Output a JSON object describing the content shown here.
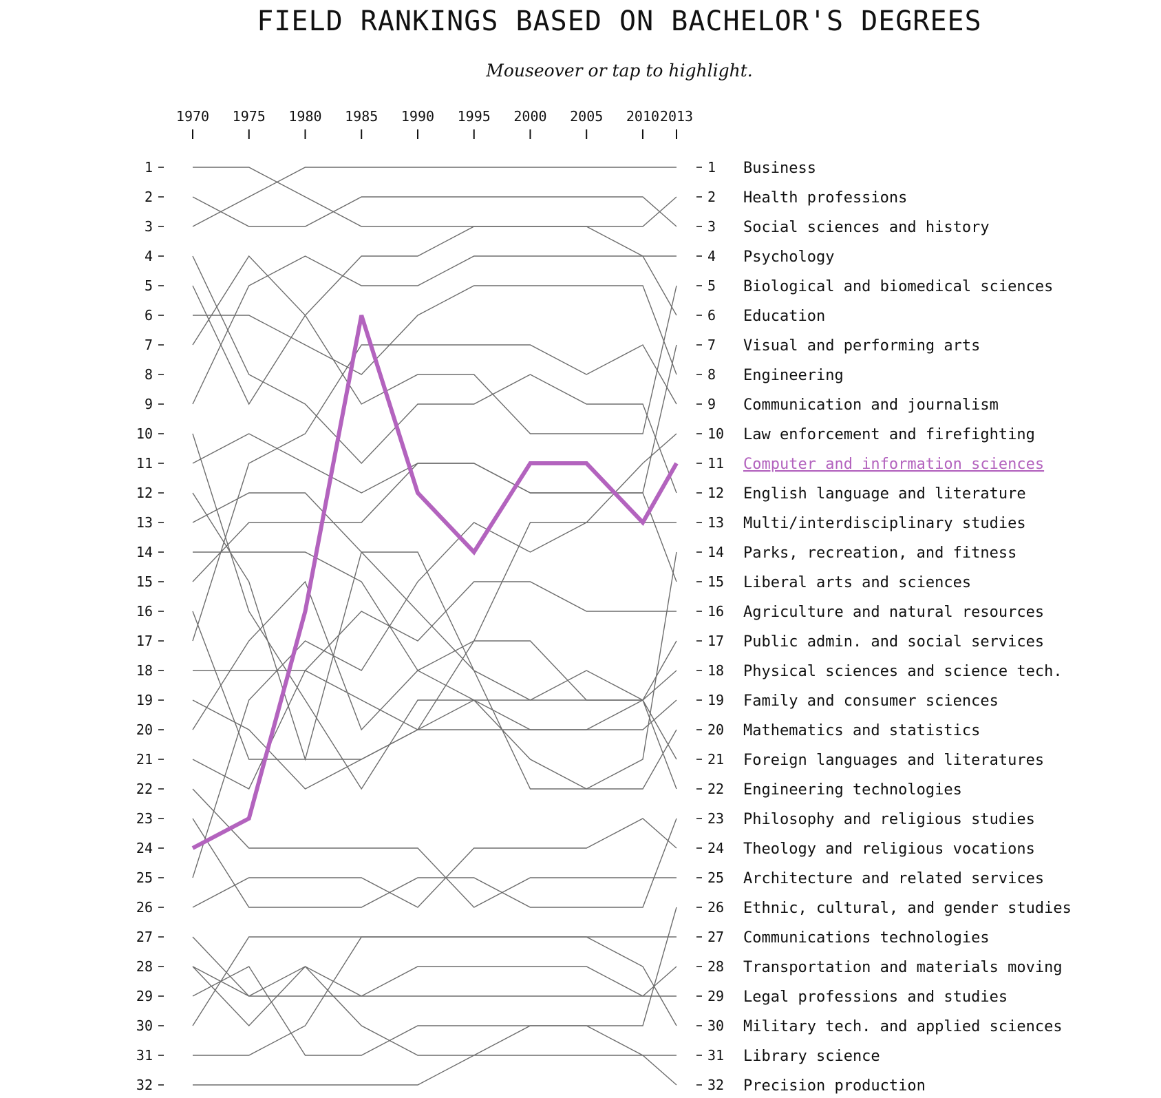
{
  "title": "FIELD RANKINGS BASED ON BACHELOR'S DEGREES",
  "subtitle": "Mouseover or tap to highlight.",
  "colors": {
    "line": "#6d6d6d",
    "highlight": "#b363be",
    "text": "#111111",
    "background": "#ffffff"
  },
  "chart_data": {
    "type": "line",
    "chart_kind": "bump chart (rank over time)",
    "title": "FIELD RANKINGS BASED ON BACHELOR'S DEGREES",
    "subtitle": "Mouseover or tap to highlight.",
    "x": [
      1970,
      1975,
      1980,
      1985,
      1990,
      1995,
      2000,
      2005,
      2010,
      2013
    ],
    "x_axis_position": "top",
    "y_axis_reversed": true,
    "ylim": [
      1,
      32
    ],
    "y_ticks": [
      1,
      2,
      3,
      4,
      5,
      6,
      7,
      8,
      9,
      10,
      11,
      12,
      13,
      14,
      15,
      16,
      17,
      18,
      19,
      20,
      21,
      22,
      23,
      24,
      25,
      26,
      27,
      28,
      29,
      30,
      31,
      32
    ],
    "highlighted_series": "Computer and information sciences",
    "series": [
      {
        "name": "Business",
        "values": [
          3,
          2,
          1,
          1,
          1,
          1,
          1,
          1,
          1,
          1
        ]
      },
      {
        "name": "Health professions",
        "values": [
          5,
          9,
          6,
          4,
          4,
          3,
          3,
          3,
          3,
          2
        ]
      },
      {
        "name": "Social sciences and history",
        "values": [
          2,
          3,
          3,
          2,
          2,
          2,
          2,
          2,
          2,
          3
        ]
      },
      {
        "name": "Psychology",
        "values": [
          9,
          5,
          4,
          5,
          5,
          4,
          4,
          4,
          4,
          4
        ]
      },
      {
        "name": "Biological and biomedical sciences",
        "values": [
          7,
          4,
          6,
          9,
          8,
          8,
          10,
          10,
          10,
          5
        ]
      },
      {
        "name": "Education",
        "values": [
          1,
          1,
          2,
          3,
          3,
          3,
          3,
          3,
          4,
          6
        ]
      },
      {
        "name": "Visual and performing arts",
        "values": [
          11,
          10,
          11,
          12,
          11,
          11,
          12,
          12,
          12,
          7
        ]
      },
      {
        "name": "Engineering",
        "values": [
          6,
          6,
          7,
          8,
          6,
          5,
          5,
          5,
          5,
          8
        ]
      },
      {
        "name": "Communication and journalism",
        "values": [
          17,
          11,
          10,
          7,
          7,
          7,
          7,
          8,
          7,
          9
        ]
      },
      {
        "name": "Law enforcement and firefighting",
        "values": [
          20,
          17,
          15,
          20,
          18,
          17,
          13,
          13,
          11,
          10
        ]
      },
      {
        "name": "Computer and information sciences",
        "values": [
          24,
          23,
          16,
          6,
          12,
          14,
          11,
          11,
          13,
          11
        ]
      },
      {
        "name": "English language and literature",
        "values": [
          4,
          8,
          9,
          11,
          9,
          9,
          8,
          9,
          9,
          12
        ]
      },
      {
        "name": "Multi/interdisciplinary studies",
        "values": [
          25,
          19,
          17,
          18,
          15,
          13,
          14,
          13,
          13,
          13
        ]
      },
      {
        "name": "Parks, recreation, and fitness",
        "values": [
          12,
          15,
          21,
          14,
          14,
          18,
          22,
          22,
          21,
          14
        ]
      },
      {
        "name": "Liberal arts and sciences",
        "values": [
          15,
          13,
          13,
          13,
          11,
          11,
          12,
          12,
          12,
          15
        ]
      },
      {
        "name": "Agriculture and natural resources",
        "values": [
          18,
          18,
          18,
          16,
          17,
          15,
          15,
          16,
          16,
          16
        ]
      },
      {
        "name": "Public admin. and social services",
        "values": [
          19,
          20,
          22,
          21,
          20,
          17,
          17,
          19,
          19,
          17
        ]
      },
      {
        "name": "Physical sciences and science tech.",
        "values": [
          14,
          14,
          14,
          15,
          18,
          19,
          19,
          18,
          19,
          18
        ]
      },
      {
        "name": "Family and consumer sciences",
        "values": [
          21,
          22,
          18,
          19,
          20,
          20,
          20,
          20,
          20,
          19
        ]
      },
      {
        "name": "Mathematics and statistics",
        "values": [
          10,
          16,
          19,
          22,
          19,
          19,
          21,
          22,
          22,
          20
        ]
      },
      {
        "name": "Foreign languages and literatures",
        "values": [
          13,
          12,
          12,
          14,
          16,
          18,
          19,
          19,
          19,
          21
        ]
      },
      {
        "name": "Engineering technologies",
        "values": [
          16,
          21,
          21,
          21,
          20,
          19,
          20,
          20,
          19,
          22
        ]
      },
      {
        "name": "Philosophy and religious studies",
        "values": [
          23,
          26,
          26,
          26,
          25,
          25,
          26,
          26,
          26,
          23
        ]
      },
      {
        "name": "Theology and religious vocations",
        "values": [
          26,
          25,
          25,
          25,
          26,
          24,
          24,
          24,
          23,
          24
        ]
      },
      {
        "name": "Architecture and related services",
        "values": [
          22,
          24,
          24,
          24,
          24,
          26,
          25,
          25,
          25,
          25
        ]
      },
      {
        "name": "Ethnic, cultural, and gender studies",
        "values": [
          29,
          28,
          31,
          31,
          30,
          30,
          30,
          30,
          30,
          26
        ]
      },
      {
        "name": "Communications technologies",
        "values": [
          30,
          27,
          27,
          27,
          27,
          27,
          27,
          27,
          27,
          27
        ]
      },
      {
        "name": "Transportation and materials moving",
        "values": [
          28,
          29,
          29,
          29,
          29,
          29,
          29,
          29,
          29,
          28
        ]
      },
      {
        "name": "Legal professions and studies",
        "values": [
          27,
          29,
          28,
          29,
          28,
          28,
          28,
          28,
          29,
          29
        ]
      },
      {
        "name": "Military tech. and applied sciences",
        "values": [
          31,
          31,
          30,
          27,
          27,
          27,
          27,
          27,
          28,
          30
        ]
      },
      {
        "name": "Library science",
        "values": [
          28,
          30,
          28,
          30,
          31,
          31,
          31,
          31,
          31,
          31
        ]
      },
      {
        "name": "Precision production",
        "values": [
          32,
          32,
          32,
          32,
          32,
          31,
          30,
          30,
          31,
          32
        ]
      }
    ]
  }
}
